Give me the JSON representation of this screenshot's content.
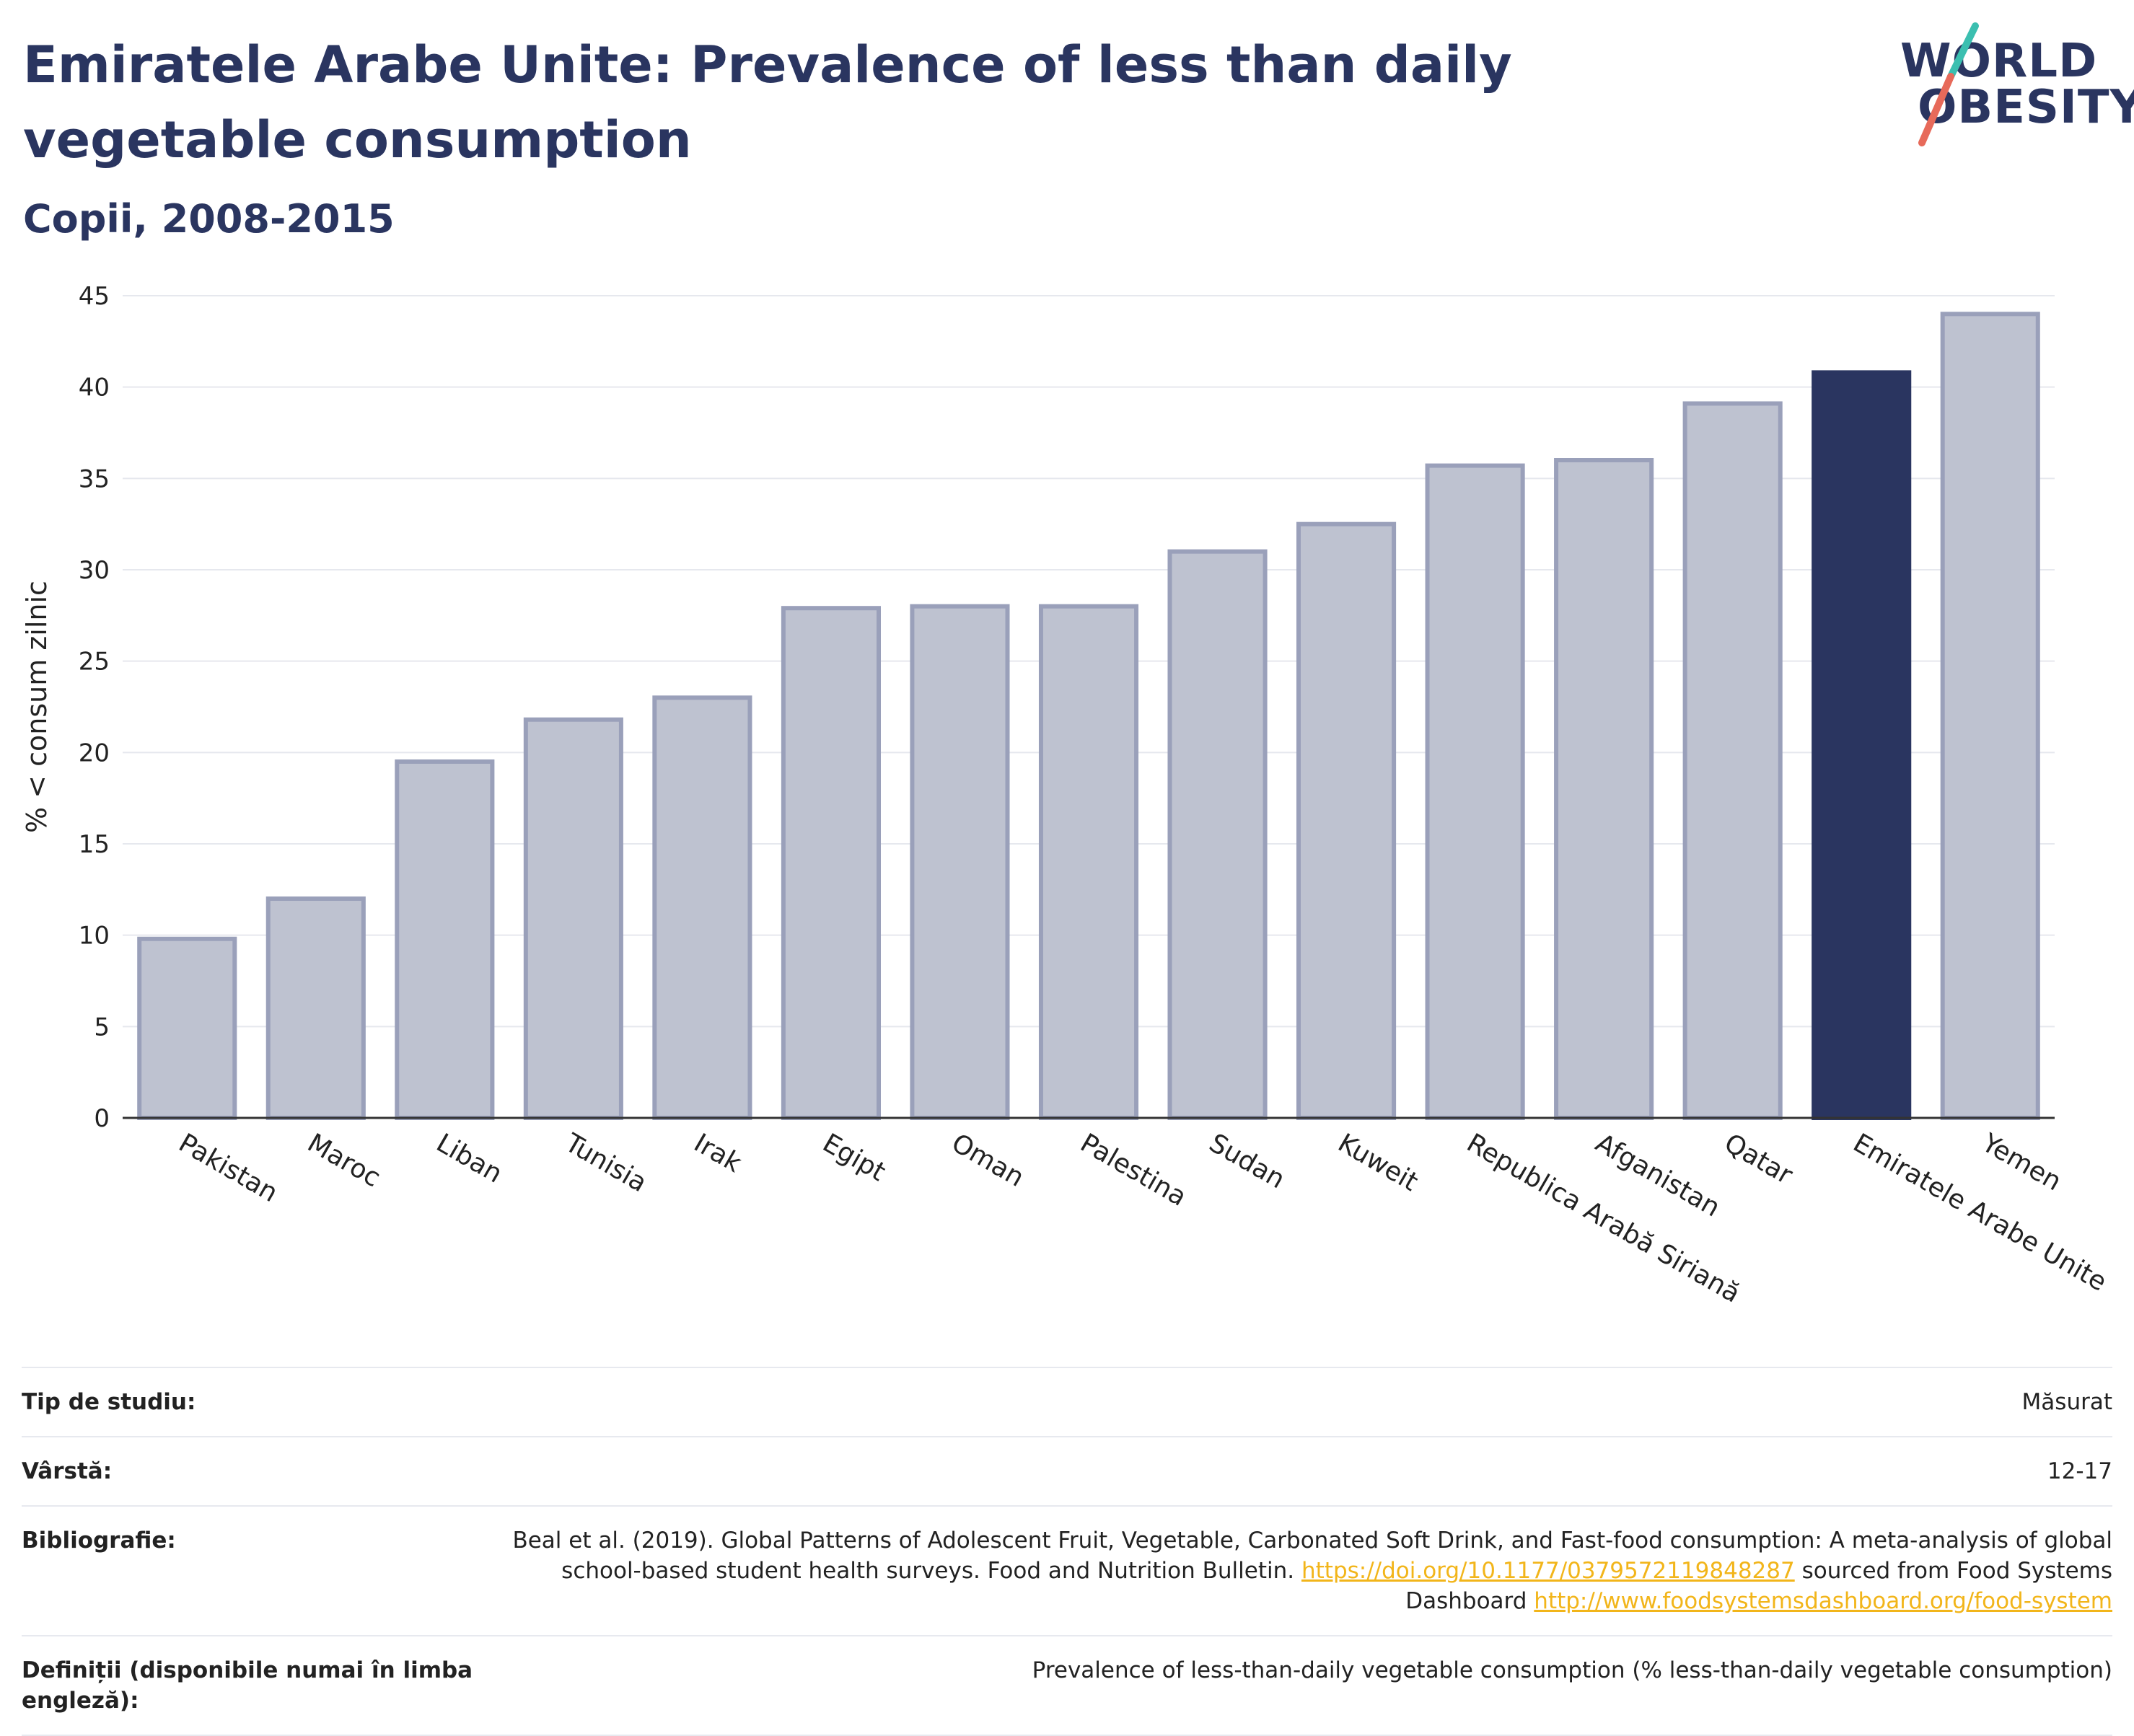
{
  "header": {
    "title": "Emiratele Arabe Unite: Prevalence of less than daily vegetable consumption",
    "subtitle": "Copii, 2008-2015",
    "logo_line1": "WORLD",
    "logo_line2": "OBESITY"
  },
  "colors": {
    "bar": "#bec2d0",
    "bar_border": "#9aa0ba",
    "highlight": "#2a3560",
    "text": "#2a3560",
    "grid": "#e6e8ee",
    "link": "#f2b51a",
    "logo_teal": "#3bbfb0",
    "logo_coral": "#e76a5a"
  },
  "chart_data": {
    "type": "bar",
    "title": "Emiratele Arabe Unite: Prevalence of less than daily vegetable consumption",
    "subtitle": "Copii, 2008-2015",
    "xlabel": "",
    "ylabel": "% < consum zilnic",
    "ylim": [
      0,
      45
    ],
    "yticks": [
      0,
      5,
      10,
      15,
      20,
      25,
      30,
      35,
      40,
      45
    ],
    "grid": true,
    "categories": [
      "Pakistan",
      "Maroc",
      "Liban",
      "Tunisia",
      "Irak",
      "Egipt",
      "Oman",
      "Palestina",
      "Sudan",
      "Kuweit",
      "Republica Arabă Siriană",
      "Afganistan",
      "Qatar",
      "Emiratele Arabe Unite",
      "Yemen"
    ],
    "values": [
      9.8,
      12.0,
      19.5,
      21.8,
      23.0,
      27.9,
      28.0,
      28.0,
      31.0,
      32.5,
      35.7,
      36.0,
      39.1,
      40.8,
      44.0
    ],
    "highlight": "Emiratele Arabe Unite"
  },
  "info": {
    "study_type_label": "Tip de studiu:",
    "study_type_value": "Măsurat",
    "age_label": "Vârstă:",
    "age_value": "12-17",
    "bibliography_label": "Bibliografie:",
    "bibliography_text_1": "Beal et al. (2019). Global Patterns of Adolescent Fruit, Vegetable, Carbonated Soft Drink, and Fast-food consumption: A meta-analysis of global school-based student health surveys. Food and Nutrition Bulletin.",
    "bibliography_link_1": "https://doi.org/10.1177/0379572119848287",
    "bibliography_text_2": "sourced from Food Systems Dashboard",
    "bibliography_link_2": "http://www.foodsystemsdashboard.org/food-system",
    "definitions_label": "Definiții (disponibile numai în limba engleză):",
    "definitions_value": "Prevalence of less-than-daily vegetable consumption (% less-than-daily vegetable consumption)"
  }
}
